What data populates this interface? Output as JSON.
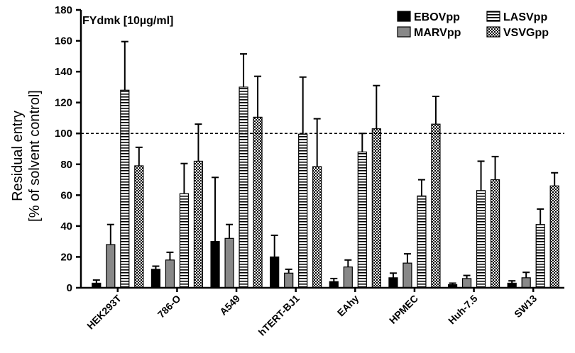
{
  "chart_data": {
    "type": "bar",
    "annotation": "FYdmk [10µg/ml]",
    "ylabel_line1": "Residual entry",
    "ylabel_line2": "[% of solvent control]",
    "ylim": [
      0,
      180
    ],
    "yticks": [
      0,
      20,
      40,
      60,
      80,
      100,
      120,
      140,
      160,
      180
    ],
    "reference_line": 100,
    "legend_position": "top-right",
    "categories": [
      "HEK293T",
      "786-O",
      "A549",
      "hTERT-BJ1",
      "EAhy",
      "HPMEC",
      "Huh-7.5",
      "SW13"
    ],
    "series": [
      {
        "name": "EBOVpp",
        "pattern": "solid-black",
        "values": [
          3,
          12,
          30,
          20,
          4,
          6.5,
          2,
          3
        ],
        "errors": [
          2,
          2,
          41.5,
          14,
          2,
          3,
          1,
          1.5
        ]
      },
      {
        "name": "MARVpp",
        "pattern": "solid-gray",
        "values": [
          28,
          18,
          32,
          9.5,
          13.5,
          16,
          6,
          6.5
        ],
        "errors": [
          13,
          5,
          9,
          2.5,
          4.5,
          6,
          2,
          3.5
        ]
      },
      {
        "name": "LASVpp",
        "pattern": "horizontal-stripes",
        "values": [
          128,
          61,
          130,
          99.5,
          88,
          59.5,
          63,
          41
        ],
        "errors": [
          31.5,
          19.5,
          21.5,
          37,
          12,
          10.5,
          19,
          10
        ]
      },
      {
        "name": "VSVGpp",
        "pattern": "checkered",
        "values": [
          79,
          82,
          110.5,
          78.5,
          103,
          106,
          70,
          66
        ],
        "errors": [
          12,
          24,
          26.5,
          31,
          28,
          18,
          15,
          8.5
        ]
      }
    ]
  }
}
